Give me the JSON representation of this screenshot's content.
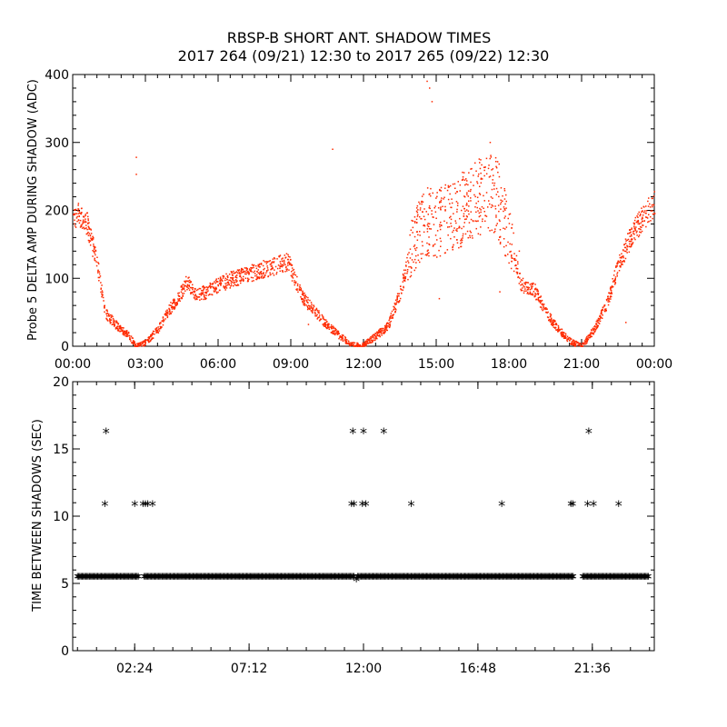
{
  "title_line1": "RBSP-B SHORT ANT. SHADOW TIMES",
  "title_line2": "2017 264 (09/21) 12:30 to 2017 265 (09/22) 12:30",
  "colors": {
    "amp_points": "#ff2a00",
    "interval_points": "#000000",
    "axes": "#000000"
  },
  "chart_data": [
    {
      "type": "scatter",
      "ylabel": "Probe 5 DELTA AMP DURING SHADOW (ADC)",
      "ylim": [
        0,
        400
      ],
      "yticks": [
        0,
        100,
        200,
        300,
        400
      ],
      "xlim_hours": [
        0,
        24
      ],
      "xticks": [
        {
          "label": "00:00",
          "hour": 0
        },
        {
          "label": "03:00",
          "hour": 3
        },
        {
          "label": "06:00",
          "hour": 6
        },
        {
          "label": "09:00",
          "hour": 9
        },
        {
          "label": "12:00",
          "hour": 12
        },
        {
          "label": "15:00",
          "hour": 15
        },
        {
          "label": "18:00",
          "hour": 18
        },
        {
          "label": "21:00",
          "hour": 21
        },
        {
          "label": "00:00",
          "hour": 24
        }
      ],
      "envelope_hour_amp": [
        [
          0.0,
          195
        ],
        [
          0.5,
          190
        ],
        [
          1.0,
          120
        ],
        [
          1.3,
          50
        ],
        [
          1.8,
          30
        ],
        [
          2.3,
          15
        ],
        [
          2.5,
          5
        ],
        [
          2.6,
          0
        ],
        [
          3.0,
          5
        ],
        [
          3.5,
          25
        ],
        [
          4.0,
          55
        ],
        [
          4.4,
          75
        ],
        [
          4.7,
          95
        ],
        [
          5.0,
          75
        ],
        [
          5.5,
          80
        ],
        [
          6.0,
          90
        ],
        [
          6.5,
          98
        ],
        [
          7.0,
          103
        ],
        [
          7.5,
          110
        ],
        [
          8.0,
          115
        ],
        [
          8.5,
          120
        ],
        [
          8.9,
          125
        ],
        [
          9.0,
          110
        ],
        [
          9.5,
          70
        ],
        [
          10.0,
          50
        ],
        [
          10.5,
          30
        ],
        [
          11.0,
          15
        ],
        [
          11.5,
          2
        ],
        [
          11.9,
          0
        ],
        [
          12.0,
          2
        ],
        [
          12.5,
          15
        ],
        [
          13.0,
          30
        ],
        [
          13.5,
          80
        ],
        [
          14.0,
          150
        ],
        [
          14.5,
          185
        ],
        [
          15.0,
          180
        ],
        [
          15.5,
          190
        ],
        [
          16.0,
          200
        ],
        [
          16.5,
          215
        ],
        [
          17.0,
          225
        ],
        [
          17.5,
          220
        ],
        [
          18.0,
          160
        ],
        [
          18.5,
          90
        ],
        [
          19.0,
          85
        ],
        [
          19.5,
          50
        ],
        [
          20.0,
          25
        ],
        [
          20.5,
          8
        ],
        [
          20.8,
          2
        ],
        [
          21.0,
          0
        ],
        [
          21.5,
          25
        ],
        [
          22.0,
          60
        ],
        [
          22.5,
          120
        ],
        [
          23.0,
          160
        ],
        [
          23.5,
          190
        ],
        [
          24.0,
          210
        ]
      ],
      "outlier_hour_amp": [
        [
          2.6,
          278
        ],
        [
          2.6,
          253
        ],
        [
          9.7,
          32
        ],
        [
          10.7,
          290
        ],
        [
          14.6,
          390
        ],
        [
          14.7,
          380
        ],
        [
          14.8,
          360
        ],
        [
          17.2,
          300
        ],
        [
          17.6,
          80
        ],
        [
          18.4,
          140
        ],
        [
          22.8,
          35
        ],
        [
          15.1,
          70
        ]
      ]
    },
    {
      "type": "scatter",
      "ylabel": "TIME BETWEEN SHADOWS (SEC)",
      "ylim": [
        0,
        20
      ],
      "yticks": [
        0,
        5,
        10,
        15,
        20
      ],
      "xlim_hours": [
        -0.2,
        24.2
      ],
      "xticks": [
        {
          "label": "02:24",
          "hour": 2.4
        },
        {
          "label": "07:12",
          "hour": 7.2
        },
        {
          "label": "12:00",
          "hour": 12
        },
        {
          "label": "16:48",
          "hour": 16.8
        },
        {
          "label": "21:36",
          "hour": 21.6
        }
      ],
      "baseline_sec": 5.4,
      "baseline_gaps_hours": [
        [
          2.55,
          2.75
        ],
        [
          11.65,
          11.75
        ],
        [
          20.85,
          21.2
        ]
      ],
      "points_hour_sec": [
        [
          1.2,
          16.2
        ],
        [
          1.15,
          10.8
        ],
        [
          2.4,
          10.8
        ],
        [
          2.75,
          10.8
        ],
        [
          2.85,
          10.8
        ],
        [
          2.95,
          10.8
        ],
        [
          3.15,
          10.8
        ],
        [
          11.55,
          16.2
        ],
        [
          11.5,
          10.8
        ],
        [
          11.6,
          10.8
        ],
        [
          12.0,
          16.2
        ],
        [
          11.95,
          10.8
        ],
        [
          12.1,
          10.8
        ],
        [
          12.85,
          16.2
        ],
        [
          14.0,
          10.8
        ],
        [
          17.8,
          10.8
        ],
        [
          20.7,
          10.8
        ],
        [
          20.78,
          10.8
        ],
        [
          21.45,
          16.2
        ],
        [
          21.4,
          10.8
        ],
        [
          21.65,
          10.8
        ],
        [
          22.7,
          10.8
        ],
        [
          11.7,
          5.2
        ]
      ]
    }
  ]
}
